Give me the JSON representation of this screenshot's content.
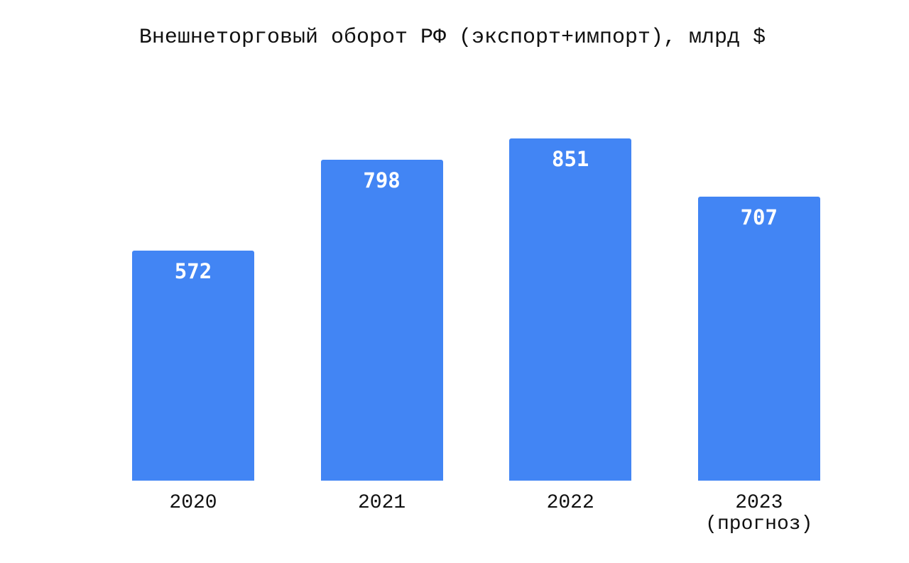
{
  "chart_data": {
    "type": "bar",
    "title": "Внешнеторговый оборот РФ (экспорт+импорт), млрд $",
    "categories": [
      "2020",
      "2021",
      "2022",
      "2023\n(прогноз)"
    ],
    "values": [
      572,
      798,
      851,
      707
    ],
    "color": "#4285f4"
  }
}
